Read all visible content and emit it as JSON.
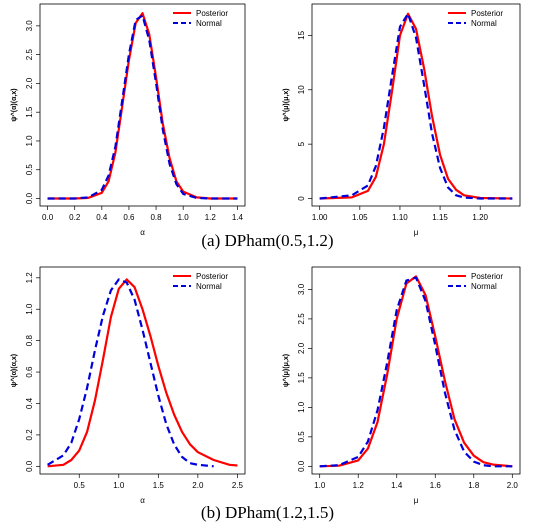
{
  "captions": [
    "(a) DPham(0.5,1.2)",
    "(b) DPham(1.2,1.5)"
  ],
  "chart_data": [
    {
      "type": "line",
      "xlabel": "α",
      "ylabel": "ψ^(α)(α,x)",
      "xlim": [
        0.0,
        1.4
      ],
      "ylim": [
        0.0,
        3.25
      ],
      "xticks": [
        "0.0",
        "0.2",
        "0.4",
        "0.6",
        "0.8",
        "1.0",
        "1.2",
        "1.4"
      ],
      "yticks": [
        "0.0",
        "0.5",
        "1.0",
        "1.5",
        "2.0",
        "2.5",
        "3.0"
      ],
      "legend": "top-right",
      "series": [
        {
          "name": "Posterior",
          "color": "#ff0000",
          "style": "solid",
          "x": [
            0.0,
            0.2,
            0.3,
            0.4,
            0.45,
            0.5,
            0.55,
            0.6,
            0.65,
            0.7,
            0.75,
            0.8,
            0.85,
            0.9,
            0.95,
            1.0,
            1.1,
            1.2,
            1.3,
            1.4
          ],
          "y": [
            0,
            0,
            0.01,
            0.1,
            0.3,
            0.8,
            1.6,
            2.4,
            3.05,
            3.22,
            2.85,
            2.1,
            1.3,
            0.7,
            0.3,
            0.12,
            0.02,
            0,
            0,
            0
          ]
        },
        {
          "name": "Normal",
          "color": "#0000dd",
          "style": "dashed",
          "x": [
            0.0,
            0.2,
            0.3,
            0.4,
            0.45,
            0.5,
            0.55,
            0.6,
            0.65,
            0.7,
            0.75,
            0.8,
            0.85,
            0.9,
            0.95,
            1.0,
            1.1,
            1.2,
            1.3,
            1.4
          ],
          "y": [
            0,
            0,
            0.02,
            0.15,
            0.4,
            0.9,
            1.7,
            2.5,
            3.1,
            3.18,
            2.75,
            2.0,
            1.2,
            0.6,
            0.25,
            0.08,
            0.01,
            0,
            0,
            0
          ]
        }
      ]
    },
    {
      "type": "line",
      "xlabel": "μ",
      "ylabel": "ψ^(μ)(μ,x)",
      "xlim": [
        1.0,
        1.24
      ],
      "ylim": [
        0.0,
        17.2
      ],
      "xticks": [
        "1.00",
        "1.05",
        "1.10",
        "1.15",
        "1.20"
      ],
      "yticks": [
        "0",
        "5",
        "10",
        "15"
      ],
      "legend": "top-right",
      "series": [
        {
          "name": "Posterior",
          "color": "#ff0000",
          "style": "solid",
          "x": [
            1.0,
            1.04,
            1.06,
            1.07,
            1.08,
            1.09,
            1.1,
            1.11,
            1.12,
            1.13,
            1.14,
            1.15,
            1.16,
            1.17,
            1.18,
            1.2,
            1.24
          ],
          "y": [
            0,
            0.1,
            0.7,
            2.0,
            5.0,
            9.8,
            15.0,
            17.0,
            15.6,
            12.0,
            7.6,
            4.0,
            1.8,
            0.8,
            0.3,
            0.05,
            0
          ]
        },
        {
          "name": "Normal",
          "color": "#0000dd",
          "style": "dashed",
          "x": [
            1.0,
            1.04,
            1.06,
            1.07,
            1.08,
            1.09,
            1.1,
            1.11,
            1.12,
            1.13,
            1.14,
            1.15,
            1.16,
            1.17,
            1.18,
            1.2,
            1.24
          ],
          "y": [
            0,
            0.3,
            1.2,
            3.0,
            6.5,
            11.2,
            15.8,
            17.0,
            14.8,
            10.5,
            6.0,
            2.8,
            1.0,
            0.3,
            0.08,
            0,
            0
          ]
        }
      ]
    },
    {
      "type": "line",
      "xlabel": "α",
      "ylabel": "ψ^(α)(α,x)",
      "xlim": [
        0.1,
        2.5
      ],
      "ylim": [
        0.0,
        1.22
      ],
      "xticks": [
        "0.5",
        "1.0",
        "1.5",
        "2.0",
        "2.5"
      ],
      "yticks": [
        "0.0",
        "0.2",
        "0.4",
        "0.6",
        "0.8",
        "1.0",
        "1.2"
      ],
      "legend": "top-right",
      "series": [
        {
          "name": "Posterior",
          "color": "#ff0000",
          "style": "solid",
          "x": [
            0.1,
            0.3,
            0.4,
            0.5,
            0.6,
            0.7,
            0.8,
            0.9,
            1.0,
            1.1,
            1.2,
            1.3,
            1.4,
            1.5,
            1.6,
            1.7,
            1.8,
            1.9,
            2.0,
            2.2,
            2.4,
            2.5
          ],
          "y": [
            0,
            0.01,
            0.04,
            0.1,
            0.22,
            0.42,
            0.68,
            0.95,
            1.13,
            1.19,
            1.14,
            1.0,
            0.83,
            0.64,
            0.47,
            0.33,
            0.22,
            0.14,
            0.09,
            0.04,
            0.01,
            0.005
          ]
        },
        {
          "name": "Normal",
          "color": "#0000dd",
          "style": "dashed",
          "x": [
            0.1,
            0.3,
            0.4,
            0.5,
            0.6,
            0.7,
            0.8,
            0.9,
            1.0,
            1.1,
            1.2,
            1.3,
            1.4,
            1.5,
            1.6,
            1.7,
            1.8,
            1.9,
            2.0,
            2.2
          ],
          "y": [
            0.01,
            0.07,
            0.15,
            0.3,
            0.5,
            0.74,
            0.96,
            1.12,
            1.19,
            1.17,
            1.06,
            0.87,
            0.66,
            0.45,
            0.27,
            0.14,
            0.06,
            0.02,
            0.01,
            0
          ]
        }
      ]
    },
    {
      "type": "line",
      "xlabel": "μ",
      "ylabel": "ψ^(μ)(μ,x)",
      "xlim": [
        1.0,
        2.0
      ],
      "ylim": [
        0.0,
        3.25
      ],
      "xticks": [
        "1.0",
        "1.2",
        "1.4",
        "1.6",
        "1.8",
        "2.0"
      ],
      "yticks": [
        "0.0",
        "0.5",
        "1.0",
        "1.5",
        "2.0",
        "2.5",
        "3.0"
      ],
      "legend": "top-right",
      "series": [
        {
          "name": "Posterior",
          "color": "#ff0000",
          "style": "solid",
          "x": [
            1.0,
            1.1,
            1.2,
            1.25,
            1.3,
            1.35,
            1.4,
            1.45,
            1.5,
            1.55,
            1.6,
            1.65,
            1.7,
            1.75,
            1.8,
            1.85,
            1.9,
            2.0
          ],
          "y": [
            0,
            0.01,
            0.1,
            0.3,
            0.75,
            1.55,
            2.5,
            3.1,
            3.22,
            2.9,
            2.2,
            1.45,
            0.8,
            0.4,
            0.18,
            0.07,
            0.03,
            0
          ]
        },
        {
          "name": "Normal",
          "color": "#0000dd",
          "style": "dashed",
          "x": [
            1.0,
            1.1,
            1.2,
            1.25,
            1.3,
            1.35,
            1.4,
            1.45,
            1.5,
            1.55,
            1.6,
            1.65,
            1.7,
            1.75,
            1.8,
            1.85,
            1.9,
            2.0
          ],
          "y": [
            0,
            0.02,
            0.16,
            0.42,
            0.95,
            1.75,
            2.65,
            3.15,
            3.2,
            2.8,
            2.05,
            1.25,
            0.62,
            0.25,
            0.08,
            0.02,
            0,
            0
          ]
        }
      ]
    }
  ]
}
